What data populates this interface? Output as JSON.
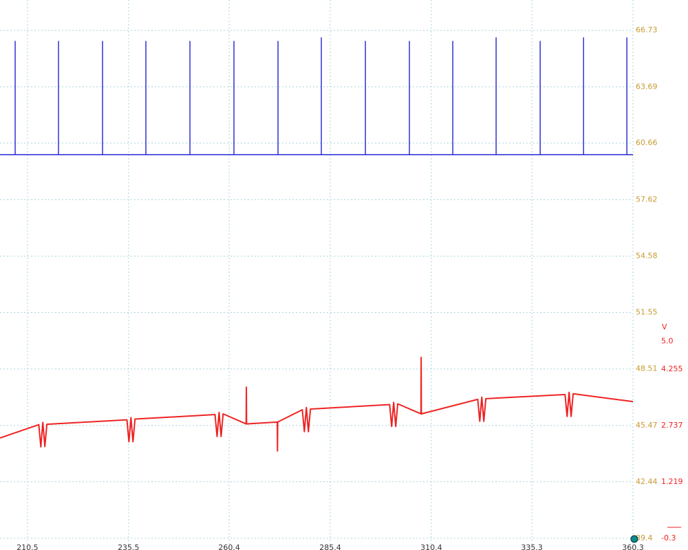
{
  "chart_data": {
    "type": "line",
    "xlim": [
      203.7,
      360.3
    ],
    "xticks": [
      210.5,
      235.5,
      260.4,
      285.4,
      310.4,
      335.3,
      360.3
    ],
    "ylim": [
      39.4,
      68.36
    ],
    "yticks": [
      39.4,
      42.44,
      45.47,
      48.51,
      51.55,
      54.58,
      57.62,
      60.66,
      63.69,
      66.73
    ],
    "y2lim": [
      -0.3,
      14.19
    ],
    "y2ticks": [
      -0.3,
      1.219,
      2.737,
      4.255,
      {
        "value": 5,
        "label": "5.0"
      }
    ],
    "y2label": "V",
    "grid": true,
    "series": [
      {
        "color": "#1010d0",
        "x": [
          203.7,
          207.45,
          207.45,
          207.45,
          218.17,
          218.17,
          218.17,
          229.07,
          229.07,
          229.07,
          239.79,
          239.79,
          239.79,
          250.69,
          250.69,
          250.69,
          261.58,
          261.58,
          261.58,
          272.48,
          272.48,
          272.48,
          283.2,
          283.2,
          283.2,
          294.1,
          294.1,
          294.1,
          304.99,
          304.99,
          304.99,
          315.72,
          315.72,
          315.72,
          326.44,
          326.44,
          326.44,
          337.34,
          337.34,
          337.34,
          348.07,
          348.07,
          348.07,
          358.79,
          358.79,
          358.79,
          360.3
        ],
        "values": [
          60.04,
          60.04,
          66.14,
          60.04,
          60.04,
          66.14,
          60.04,
          60.04,
          66.14,
          60.04,
          60.04,
          66.14,
          60.04,
          60.04,
          66.14,
          60.04,
          60.04,
          66.14,
          60.04,
          60.04,
          66.14,
          60.04,
          60.04,
          66.33,
          60.04,
          60.04,
          66.14,
          60.04,
          60.04,
          66.14,
          60.04,
          60.04,
          66.14,
          60.04,
          60.04,
          66.33,
          60.04,
          60.04,
          66.14,
          60.04,
          60.04,
          66.33,
          60.04,
          60.04,
          66.33,
          60.04,
          60.04
        ]
      },
      {
        "color": "#ee2222",
        "axis": "y2",
        "x": [
          203.7,
          213.3,
          213.8,
          214.3,
          214.8,
          215.3,
          235.1,
          235.6,
          236.1,
          236.6,
          237.1,
          256.9,
          257.4,
          257.9,
          258.4,
          258.9,
          264.6,
          264.65,
          264.7,
          272.3,
          272.35,
          272.4,
          278.5,
          279.0,
          279.5,
          280.0,
          280.5,
          300.1,
          300.6,
          301.1,
          301.6,
          302.1,
          307.85,
          307.9,
          307.95,
          321.9,
          322.4,
          322.9,
          323.4,
          323.9,
          343.5,
          344.0,
          344.5,
          345.0,
          345.5,
          360.3
        ],
        "values": [
          2.4,
          2.76,
          2.16,
          2.82,
          2.17,
          2.77,
          2.89,
          2.3,
          2.95,
          2.3,
          2.91,
          3.03,
          2.44,
          3.09,
          2.44,
          3.05,
          2.78,
          3.77,
          2.78,
          2.83,
          2.05,
          2.83,
          3.16,
          2.57,
          3.22,
          2.57,
          3.18,
          3.3,
          2.71,
          3.36,
          2.71,
          3.32,
          3.05,
          4.57,
          3.05,
          3.44,
          2.85,
          3.5,
          2.85,
          3.46,
          3.57,
          2.98,
          3.63,
          2.98,
          3.59,
          3.38
        ]
      }
    ]
  }
}
